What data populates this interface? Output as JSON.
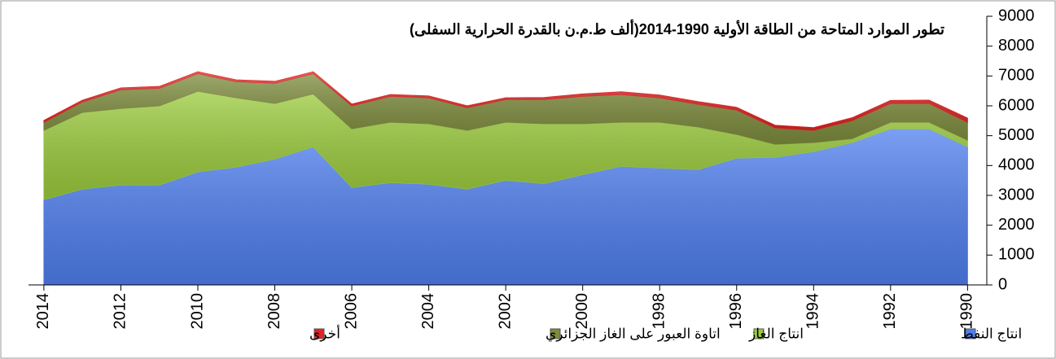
{
  "chart_data": {
    "type": "area",
    "title": "تطور الموارد المتاحة من الطاقة الأولية 1990-2014(ألف ط.م.ن بالقدرة الحرارية السفلى)",
    "x": [
      2014,
      2013,
      2012,
      2011,
      2010,
      2009,
      2008,
      2007,
      2006,
      2005,
      2004,
      2003,
      2002,
      2001,
      2000,
      1999,
      1998,
      1997,
      1996,
      1995,
      1994,
      1993,
      1992,
      1991,
      1990
    ],
    "xlim": [
      2014.4,
      1989.5
    ],
    "xticks": [
      2014,
      2012,
      2010,
      2008,
      2006,
      2004,
      2002,
      2000,
      1998,
      1996,
      1994,
      1992,
      1990
    ],
    "ylim": [
      0,
      9000
    ],
    "yticks": [
      0,
      1000,
      2000,
      3000,
      4000,
      5000,
      6000,
      7000,
      8000,
      9000
    ],
    "stacked": true,
    "legend": "bottom",
    "series": [
      {
        "name": "انتاج النفط",
        "color": "#4f7fef",
        "values": [
          2860,
          3215,
          3350,
          3350,
          3790,
          3950,
          4220,
          4630,
          3270,
          3430,
          3380,
          3215,
          3510,
          3400,
          3700,
          3980,
          3920,
          3870,
          4250,
          4280,
          4470,
          4770,
          5230,
          5230,
          4630
        ]
      },
      {
        "name": "انتاج الغاز",
        "color": "#9bcb3c",
        "values": [
          2320,
          2565,
          2560,
          2650,
          2700,
          2320,
          1860,
          1770,
          1960,
          2020,
          2020,
          1965,
          1940,
          2000,
          1700,
          1470,
          1530,
          1420,
          790,
          430,
          300,
          130,
          220,
          220,
          220
        ]
      },
      {
        "name": "اتاوة العبور على الغاز الجزائري",
        "color": "#7d8b3c",
        "values": [
          270,
          350,
          630,
          590,
          590,
          540,
          680,
          680,
          770,
          870,
          870,
          760,
          760,
          810,
          920,
          930,
          820,
          760,
          820,
          550,
          410,
          600,
          630,
          630,
          600
        ]
      },
      {
        "name": "أخرى",
        "color": "#e02424",
        "values": [
          60,
          60,
          60,
          60,
          60,
          60,
          60,
          60,
          60,
          60,
          60,
          60,
          60,
          70,
          80,
          90,
          90,
          90,
          90,
          90,
          90,
          100,
          100,
          110,
          140
        ]
      }
    ]
  }
}
